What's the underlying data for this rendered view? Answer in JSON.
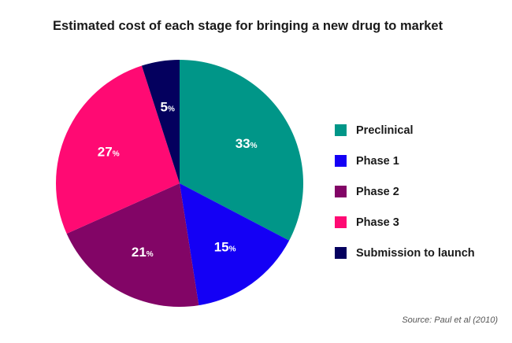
{
  "chart_data": {
    "type": "pie",
    "title": "Estimated cost of each stage for bringing a new drug to market",
    "slices": [
      {
        "label": "Preclinical",
        "value": 33,
        "display": "33",
        "unit": "%",
        "color": "#009688"
      },
      {
        "label": "Phase 1",
        "value": 15,
        "display": "15",
        "unit": "%",
        "color": "#1400f5"
      },
      {
        "label": "Phase 2",
        "value": 21,
        "display": "21",
        "unit": "%",
        "color": "#820566"
      },
      {
        "label": "Phase 3",
        "value": 27,
        "display": "27",
        "unit": "%",
        "color": "#ff0a73"
      },
      {
        "label": "Submission to launch",
        "value": 5,
        "display": "5",
        "unit": "%",
        "color": "#04005e"
      }
    ],
    "legend_position": "right",
    "source": "Source: Paul et al (2010)"
  }
}
